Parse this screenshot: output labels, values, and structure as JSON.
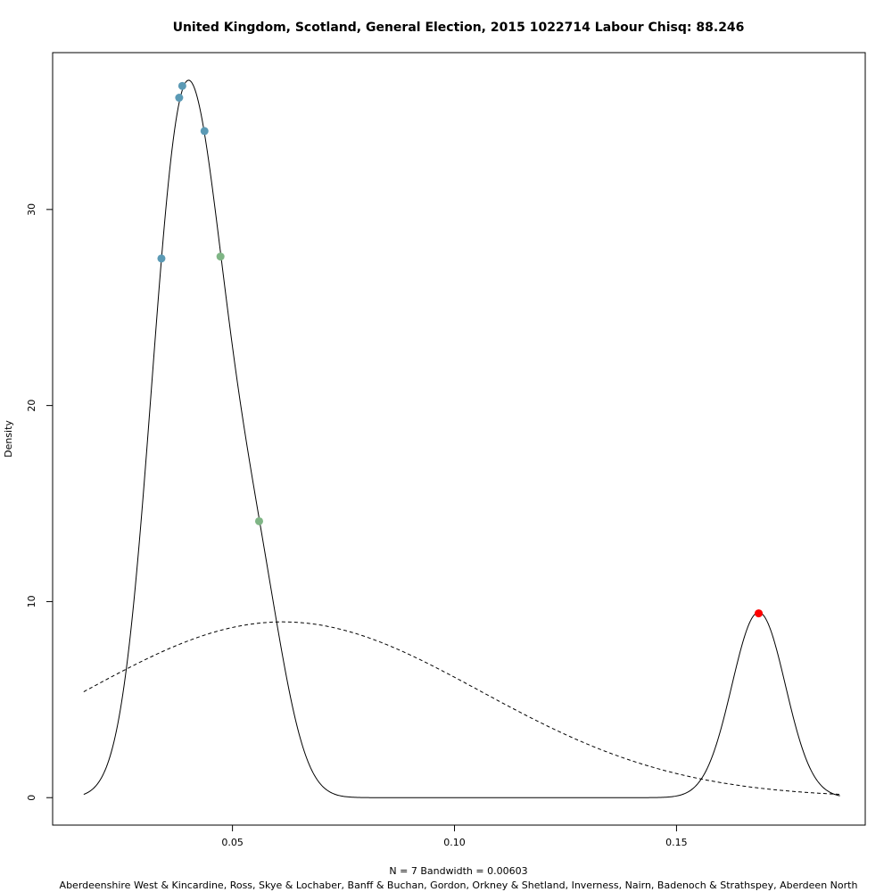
{
  "chart_data": {
    "type": "line",
    "title": "United Kingdom, Scotland, General Election, 2015 1022714 Labour Chisq: 88.246",
    "ylabel": "Density",
    "xlabel": "N = 7   Bandwidth = 0.00603",
    "subtitle": "Aberdeenshire West & Kincardine, Ross, Skye & Lochaber, Banff & Buchan, Gordon, Orkney & Shetland, Inverness, Nairn, Badenoch & Strathspey, Aberdeen North",
    "xlim": [
      0.0095,
      0.1925
    ],
    "ylim": [
      -1.4,
      38.0
    ],
    "x_ticks": [
      0.05,
      0.1,
      0.15
    ],
    "x_tick_labels": [
      "0.05",
      "0.10",
      "0.15"
    ],
    "y_ticks": [
      0,
      10,
      20,
      30
    ],
    "y_tick_labels": [
      "0",
      "10",
      "20",
      "30"
    ],
    "grid": false,
    "bandwidth": 0.00603,
    "n": 7,
    "density_range": [
      0.0165,
      0.1868
    ],
    "points": [
      {
        "x": 0.034,
        "y": 27.5,
        "color": "#5b9ab5"
      },
      {
        "x": 0.038,
        "y": 35.7,
        "color": "#5b9ab5"
      },
      {
        "x": 0.0387,
        "y": 36.3,
        "color": "#5b9ab5"
      },
      {
        "x": 0.0437,
        "y": 34.0,
        "color": "#5b9ab5"
      },
      {
        "x": 0.0473,
        "y": 27.6,
        "color": "#7fb585"
      },
      {
        "x": 0.056,
        "y": 14.1,
        "color": "#7fb585"
      },
      {
        "x": 0.1685,
        "y": 9.4,
        "color": "#ff0000"
      }
    ],
    "reference_normal": {
      "mean": 0.0613,
      "sd": 0.0445,
      "style": "dashed",
      "x_range": [
        0.0165,
        0.1868
      ]
    }
  }
}
